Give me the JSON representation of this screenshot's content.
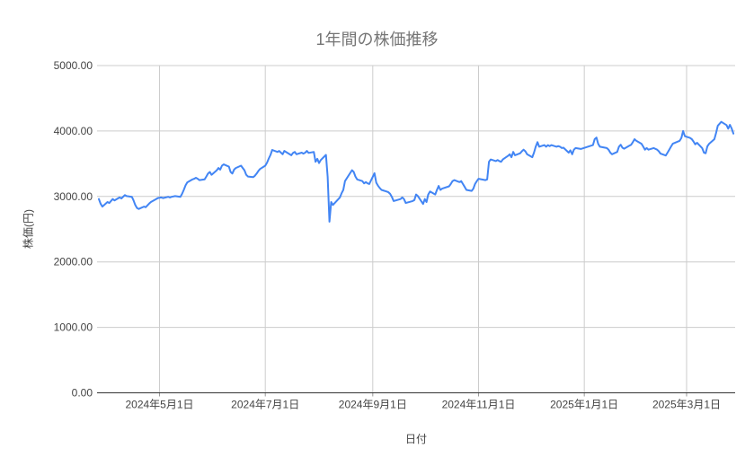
{
  "chart": {
    "title": "1年間の株価推移",
    "y_axis_title": "株価(円)",
    "x_axis_title": "日付"
  },
  "chart_data": {
    "type": "line",
    "title": "1年間の株価推移",
    "xlabel": "日付",
    "ylabel": "株価(円)",
    "ylim": [
      0,
      5000
    ],
    "x_domain": [
      "2024-03-27",
      "2025-03-29"
    ],
    "grid": true,
    "legend": false,
    "colors": {
      "line": "#4285f4",
      "grid": "#cccccc",
      "axis": "#333333",
      "tick_text": "#444444",
      "title_text": "#757575",
      "background": "#ffffff"
    },
    "y_ticks": [
      [
        0,
        "0.00"
      ],
      [
        1000,
        "1000.00"
      ],
      [
        2000,
        "2000.00"
      ],
      [
        3000,
        "3000.00"
      ],
      [
        4000,
        "4000.00"
      ],
      [
        5000,
        "5000.00"
      ]
    ],
    "x_ticks": [
      [
        "2024-05-01",
        "2024年5月1日"
      ],
      [
        "2024-07-01",
        "2024年7月1日"
      ],
      [
        "2024-09-01",
        "2024年9月1日"
      ],
      [
        "2024-11-01",
        "2024年11月1日"
      ],
      [
        "2025-01-01",
        "2025年1月1日"
      ],
      [
        "2025-03-01",
        "2025年3月1日"
      ]
    ],
    "series": [
      {
        "points": [
          [
            "2024-03-27",
            2960
          ],
          [
            "2024-03-28",
            2890
          ],
          [
            "2024-03-29",
            2845
          ],
          [
            "2024-04-01",
            2915
          ],
          [
            "2024-04-02",
            2900
          ],
          [
            "2024-04-04",
            2960
          ],
          [
            "2024-04-05",
            2940
          ],
          [
            "2024-04-08",
            2985
          ],
          [
            "2024-04-09",
            2970
          ],
          [
            "2024-04-11",
            3020
          ],
          [
            "2024-04-12",
            3005
          ],
          [
            "2024-04-15",
            2995
          ],
          [
            "2024-04-16",
            2940
          ],
          [
            "2024-04-17",
            2870
          ],
          [
            "2024-04-18",
            2825
          ],
          [
            "2024-04-19",
            2810
          ],
          [
            "2024-04-22",
            2845
          ],
          [
            "2024-04-23",
            2835
          ],
          [
            "2024-04-25",
            2890
          ],
          [
            "2024-04-26",
            2915
          ],
          [
            "2024-04-29",
            2960
          ],
          [
            "2024-04-30",
            2975
          ],
          [
            "2024-05-02",
            2985
          ],
          [
            "2024-05-03",
            2975
          ],
          [
            "2024-05-06",
            2995
          ],
          [
            "2024-05-07",
            2985
          ],
          [
            "2024-05-08",
            2995
          ],
          [
            "2024-05-10",
            3005
          ],
          [
            "2024-05-13",
            2995
          ],
          [
            "2024-05-14",
            3040
          ],
          [
            "2024-05-15",
            3100
          ],
          [
            "2024-05-16",
            3170
          ],
          [
            "2024-05-17",
            3215
          ],
          [
            "2024-05-20",
            3260
          ],
          [
            "2024-05-21",
            3270
          ],
          [
            "2024-05-22",
            3285
          ],
          [
            "2024-05-23",
            3270
          ],
          [
            "2024-05-24",
            3250
          ],
          [
            "2024-05-27",
            3260
          ],
          [
            "2024-05-28",
            3305
          ],
          [
            "2024-05-29",
            3350
          ],
          [
            "2024-05-30",
            3375
          ],
          [
            "2024-05-31",
            3330
          ],
          [
            "2024-06-03",
            3400
          ],
          [
            "2024-06-04",
            3435
          ],
          [
            "2024-06-05",
            3410
          ],
          [
            "2024-06-06",
            3470
          ],
          [
            "2024-06-07",
            3490
          ],
          [
            "2024-06-10",
            3455
          ],
          [
            "2024-06-11",
            3375
          ],
          [
            "2024-06-12",
            3350
          ],
          [
            "2024-06-13",
            3410
          ],
          [
            "2024-06-14",
            3435
          ],
          [
            "2024-06-17",
            3470
          ],
          [
            "2024-06-18",
            3435
          ],
          [
            "2024-06-19",
            3400
          ],
          [
            "2024-06-20",
            3330
          ],
          [
            "2024-06-21",
            3305
          ],
          [
            "2024-06-24",
            3295
          ],
          [
            "2024-06-25",
            3315
          ],
          [
            "2024-06-26",
            3350
          ],
          [
            "2024-06-27",
            3390
          ],
          [
            "2024-06-28",
            3420
          ],
          [
            "2024-07-01",
            3470
          ],
          [
            "2024-07-02",
            3515
          ],
          [
            "2024-07-03",
            3580
          ],
          [
            "2024-07-04",
            3635
          ],
          [
            "2024-07-05",
            3710
          ],
          [
            "2024-07-08",
            3680
          ],
          [
            "2024-07-09",
            3695
          ],
          [
            "2024-07-10",
            3670
          ],
          [
            "2024-07-11",
            3645
          ],
          [
            "2024-07-12",
            3695
          ],
          [
            "2024-07-16",
            3630
          ],
          [
            "2024-07-17",
            3665
          ],
          [
            "2024-07-18",
            3680
          ],
          [
            "2024-07-19",
            3645
          ],
          [
            "2024-07-22",
            3670
          ],
          [
            "2024-07-23",
            3655
          ],
          [
            "2024-07-24",
            3670
          ],
          [
            "2024-07-25",
            3695
          ],
          [
            "2024-07-26",
            3665
          ],
          [
            "2024-07-29",
            3680
          ],
          [
            "2024-07-30",
            3530
          ],
          [
            "2024-07-31",
            3575
          ],
          [
            "2024-08-01",
            3510
          ],
          [
            "2024-08-02",
            3555
          ],
          [
            "2024-08-05",
            3635
          ],
          [
            "2024-08-06",
            3300
          ],
          [
            "2024-08-07",
            2615
          ],
          [
            "2024-08-08",
            2915
          ],
          [
            "2024-08-09",
            2870
          ],
          [
            "2024-08-13",
            2985
          ],
          [
            "2024-08-14",
            3050
          ],
          [
            "2024-08-15",
            3100
          ],
          [
            "2024-08-16",
            3235
          ],
          [
            "2024-08-19",
            3360
          ],
          [
            "2024-08-20",
            3400
          ],
          [
            "2024-08-21",
            3375
          ],
          [
            "2024-08-22",
            3305
          ],
          [
            "2024-08-23",
            3260
          ],
          [
            "2024-08-26",
            3235
          ],
          [
            "2024-08-27",
            3200
          ],
          [
            "2024-08-28",
            3220
          ],
          [
            "2024-08-29",
            3200
          ],
          [
            "2024-08-30",
            3190
          ],
          [
            "2024-09-02",
            3355
          ],
          [
            "2024-09-03",
            3210
          ],
          [
            "2024-09-04",
            3165
          ],
          [
            "2024-09-05",
            3130
          ],
          [
            "2024-09-06",
            3100
          ],
          [
            "2024-09-09",
            3075
          ],
          [
            "2024-09-10",
            3065
          ],
          [
            "2024-09-11",
            3040
          ],
          [
            "2024-09-12",
            2995
          ],
          [
            "2024-09-13",
            2930
          ],
          [
            "2024-09-17",
            2960
          ],
          [
            "2024-09-18",
            2985
          ],
          [
            "2024-09-19",
            2960
          ],
          [
            "2024-09-20",
            2900
          ],
          [
            "2024-09-24",
            2930
          ],
          [
            "2024-09-25",
            2945
          ],
          [
            "2024-09-26",
            3030
          ],
          [
            "2024-09-27",
            3005
          ],
          [
            "2024-09-30",
            2885
          ],
          [
            "2024-10-01",
            2960
          ],
          [
            "2024-10-02",
            2915
          ],
          [
            "2024-10-03",
            3030
          ],
          [
            "2024-10-04",
            3075
          ],
          [
            "2024-10-07",
            3030
          ],
          [
            "2024-10-08",
            3100
          ],
          [
            "2024-10-09",
            3160
          ],
          [
            "2024-10-10",
            3100
          ],
          [
            "2024-10-11",
            3120
          ],
          [
            "2024-10-15",
            3155
          ],
          [
            "2024-10-16",
            3190
          ],
          [
            "2024-10-17",
            3235
          ],
          [
            "2024-10-18",
            3250
          ],
          [
            "2024-10-21",
            3220
          ],
          [
            "2024-10-22",
            3235
          ],
          [
            "2024-10-23",
            3190
          ],
          [
            "2024-10-24",
            3145
          ],
          [
            "2024-10-25",
            3100
          ],
          [
            "2024-10-28",
            3085
          ],
          [
            "2024-10-29",
            3120
          ],
          [
            "2024-10-30",
            3190
          ],
          [
            "2024-10-31",
            3235
          ],
          [
            "2024-11-01",
            3270
          ],
          [
            "2024-11-05",
            3250
          ],
          [
            "2024-11-06",
            3260
          ],
          [
            "2024-11-07",
            3530
          ],
          [
            "2024-11-08",
            3565
          ],
          [
            "2024-11-11",
            3540
          ],
          [
            "2024-11-12",
            3555
          ],
          [
            "2024-11-13",
            3540
          ],
          [
            "2024-11-14",
            3530
          ],
          [
            "2024-11-15",
            3565
          ],
          [
            "2024-11-18",
            3620
          ],
          [
            "2024-11-19",
            3645
          ],
          [
            "2024-11-20",
            3600
          ],
          [
            "2024-11-21",
            3680
          ],
          [
            "2024-11-22",
            3630
          ],
          [
            "2024-11-25",
            3660
          ],
          [
            "2024-11-26",
            3690
          ],
          [
            "2024-11-27",
            3715
          ],
          [
            "2024-11-28",
            3690
          ],
          [
            "2024-11-29",
            3645
          ],
          [
            "2024-12-02",
            3600
          ],
          [
            "2024-12-03",
            3670
          ],
          [
            "2024-12-04",
            3760
          ],
          [
            "2024-12-05",
            3830
          ],
          [
            "2024-12-06",
            3760
          ],
          [
            "2024-12-09",
            3785
          ],
          [
            "2024-12-10",
            3760
          ],
          [
            "2024-12-11",
            3785
          ],
          [
            "2024-12-12",
            3770
          ],
          [
            "2024-12-13",
            3785
          ],
          [
            "2024-12-16",
            3760
          ],
          [
            "2024-12-17",
            3770
          ],
          [
            "2024-12-18",
            3760
          ],
          [
            "2024-12-19",
            3740
          ],
          [
            "2024-12-20",
            3745
          ],
          [
            "2024-12-23",
            3670
          ],
          [
            "2024-12-24",
            3705
          ],
          [
            "2024-12-25",
            3645
          ],
          [
            "2024-12-26",
            3715
          ],
          [
            "2024-12-27",
            3740
          ],
          [
            "2024-12-30",
            3725
          ],
          [
            "2025-01-06",
            3785
          ],
          [
            "2025-01-07",
            3875
          ],
          [
            "2025-01-08",
            3900
          ],
          [
            "2025-01-09",
            3805
          ],
          [
            "2025-01-10",
            3760
          ],
          [
            "2025-01-14",
            3740
          ],
          [
            "2025-01-15",
            3715
          ],
          [
            "2025-01-16",
            3670
          ],
          [
            "2025-01-17",
            3645
          ],
          [
            "2025-01-20",
            3680
          ],
          [
            "2025-01-21",
            3760
          ],
          [
            "2025-01-22",
            3790
          ],
          [
            "2025-01-23",
            3745
          ],
          [
            "2025-01-24",
            3730
          ],
          [
            "2025-01-27",
            3775
          ],
          [
            "2025-01-28",
            3790
          ],
          [
            "2025-01-29",
            3830
          ],
          [
            "2025-01-30",
            3875
          ],
          [
            "2025-01-31",
            3850
          ],
          [
            "2025-02-03",
            3805
          ],
          [
            "2025-02-04",
            3760
          ],
          [
            "2025-02-05",
            3715
          ],
          [
            "2025-02-06",
            3740
          ],
          [
            "2025-02-07",
            3715
          ],
          [
            "2025-02-10",
            3740
          ],
          [
            "2025-02-12",
            3715
          ],
          [
            "2025-02-13",
            3690
          ],
          [
            "2025-02-14",
            3655
          ],
          [
            "2025-02-17",
            3625
          ],
          [
            "2025-02-18",
            3670
          ],
          [
            "2025-02-19",
            3715
          ],
          [
            "2025-02-20",
            3760
          ],
          [
            "2025-02-21",
            3805
          ],
          [
            "2025-02-25",
            3850
          ],
          [
            "2025-02-26",
            3895
          ],
          [
            "2025-02-27",
            4000
          ],
          [
            "2025-02-28",
            3920
          ],
          [
            "2025-03-03",
            3895
          ],
          [
            "2025-03-04",
            3875
          ],
          [
            "2025-03-05",
            3840
          ],
          [
            "2025-03-06",
            3795
          ],
          [
            "2025-03-07",
            3820
          ],
          [
            "2025-03-10",
            3740
          ],
          [
            "2025-03-11",
            3670
          ],
          [
            "2025-03-12",
            3660
          ],
          [
            "2025-03-13",
            3765
          ],
          [
            "2025-03-14",
            3805
          ],
          [
            "2025-03-17",
            3875
          ],
          [
            "2025-03-18",
            3970
          ],
          [
            "2025-03-19",
            4080
          ],
          [
            "2025-03-21",
            4140
          ],
          [
            "2025-03-24",
            4090
          ],
          [
            "2025-03-25",
            4035
          ],
          [
            "2025-03-26",
            4095
          ],
          [
            "2025-03-27",
            4040
          ],
          [
            "2025-03-28",
            3960
          ]
        ]
      }
    ]
  }
}
